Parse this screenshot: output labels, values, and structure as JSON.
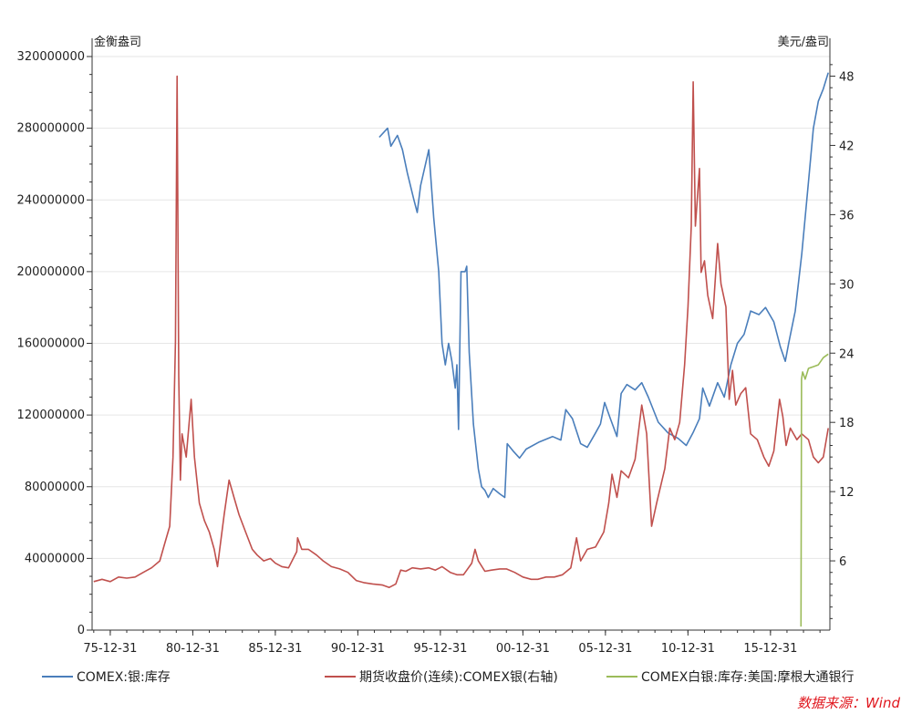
{
  "chart_data": {
    "type": "line",
    "left_axis": {
      "unit": "金衡盎司",
      "ylim": [
        0,
        320000000
      ],
      "ticks": [
        0,
        40000000,
        80000000,
        120000000,
        160000000,
        200000000,
        240000000,
        280000000,
        320000000
      ]
    },
    "right_axis": {
      "unit": "美元/盎司",
      "ylim": [
        0,
        49.7
      ],
      "ticks": [
        6,
        12,
        18,
        24,
        30,
        36,
        42,
        48
      ]
    },
    "x_ticks": [
      "75-12-31",
      "80-12-31",
      "85-12-31",
      "90-12-31",
      "95-12-31",
      "00-12-31",
      "05-12-31",
      "10-12-31",
      "15-12-31"
    ],
    "x_range": [
      1974.9,
      2019.6
    ],
    "grid": true,
    "legend_position": "bottom",
    "series": [
      {
        "name": "COMEX:银:库存",
        "axis": "left",
        "color": "#4a7ebb",
        "points": [
          [
            1992.3,
            275000000
          ],
          [
            1992.8,
            280000000
          ],
          [
            1993.0,
            270000000
          ],
          [
            1993.4,
            276000000
          ],
          [
            1993.7,
            268000000
          ],
          [
            1994.0,
            255000000
          ],
          [
            1994.4,
            240000000
          ],
          [
            1994.6,
            233000000
          ],
          [
            1994.8,
            248000000
          ],
          [
            1995.1,
            260000000
          ],
          [
            1995.3,
            268000000
          ],
          [
            1995.6,
            230000000
          ],
          [
            1995.9,
            200000000
          ],
          [
            1996.1,
            160000000
          ],
          [
            1996.3,
            148000000
          ],
          [
            1996.5,
            160000000
          ],
          [
            1996.7,
            150000000
          ],
          [
            1996.9,
            135000000
          ],
          [
            1997.0,
            148000000
          ],
          [
            1997.1,
            112000000
          ],
          [
            1997.25,
            200000000
          ],
          [
            1997.5,
            200000000
          ],
          [
            1997.6,
            203000000
          ],
          [
            1997.75,
            155000000
          ],
          [
            1998.0,
            115000000
          ],
          [
            1998.3,
            90000000
          ],
          [
            1998.5,
            80000000
          ],
          [
            1998.7,
            78000000
          ],
          [
            1998.9,
            74000000
          ],
          [
            1999.2,
            79000000
          ],
          [
            1999.6,
            76000000
          ],
          [
            1999.9,
            74000000
          ],
          [
            2000.05,
            104000000
          ],
          [
            2000.4,
            100000000
          ],
          [
            2000.8,
            96000000
          ],
          [
            2001.2,
            101000000
          ],
          [
            2002.0,
            105000000
          ],
          [
            2002.8,
            108000000
          ],
          [
            2003.3,
            106000000
          ],
          [
            2003.6,
            123000000
          ],
          [
            2004.0,
            118000000
          ],
          [
            2004.5,
            104000000
          ],
          [
            2004.9,
            102000000
          ],
          [
            2005.4,
            110000000
          ],
          [
            2005.7,
            115000000
          ],
          [
            2005.95,
            127000000
          ],
          [
            2006.3,
            118000000
          ],
          [
            2006.7,
            108000000
          ],
          [
            2006.95,
            132000000
          ],
          [
            2007.3,
            137000000
          ],
          [
            2007.8,
            134000000
          ],
          [
            2008.2,
            138000000
          ],
          [
            2008.6,
            130000000
          ],
          [
            2009.2,
            116000000
          ],
          [
            2009.8,
            110000000
          ],
          [
            2010.4,
            107000000
          ],
          [
            2010.9,
            103000000
          ],
          [
            2011.3,
            110000000
          ],
          [
            2011.7,
            118000000
          ],
          [
            2011.9,
            135000000
          ],
          [
            2012.3,
            125000000
          ],
          [
            2012.8,
            138000000
          ],
          [
            2013.2,
            130000000
          ],
          [
            2013.6,
            148000000
          ],
          [
            2014.0,
            160000000
          ],
          [
            2014.4,
            165000000
          ],
          [
            2014.8,
            178000000
          ],
          [
            2015.3,
            176000000
          ],
          [
            2015.7,
            180000000
          ],
          [
            2016.2,
            172000000
          ],
          [
            2016.6,
            158000000
          ],
          [
            2016.9,
            150000000
          ],
          [
            2017.1,
            160000000
          ],
          [
            2017.5,
            178000000
          ],
          [
            2017.9,
            210000000
          ],
          [
            2018.3,
            250000000
          ],
          [
            2018.6,
            280000000
          ],
          [
            2018.9,
            295000000
          ],
          [
            2019.2,
            302000000
          ],
          [
            2019.5,
            311000000
          ]
        ]
      },
      {
        "name": "期货收盘价(连续):COMEX银(右轴)",
        "axis": "right",
        "color": "#c0504d",
        "points": [
          [
            1975.0,
            4.2
          ],
          [
            1975.5,
            4.4
          ],
          [
            1976.0,
            4.2
          ],
          [
            1976.5,
            4.6
          ],
          [
            1977.0,
            4.5
          ],
          [
            1977.5,
            4.6
          ],
          [
            1978.0,
            5.0
          ],
          [
            1978.5,
            5.4
          ],
          [
            1979.0,
            6.0
          ],
          [
            1979.3,
            7.5
          ],
          [
            1979.6,
            9.0
          ],
          [
            1979.8,
            15.0
          ],
          [
            1979.95,
            25.0
          ],
          [
            1980.05,
            48.0
          ],
          [
            1980.15,
            22.0
          ],
          [
            1980.25,
            13.0
          ],
          [
            1980.35,
            17.0
          ],
          [
            1980.6,
            15.0
          ],
          [
            1980.9,
            20.0
          ],
          [
            1981.1,
            15.0
          ],
          [
            1981.4,
            11.0
          ],
          [
            1981.7,
            9.5
          ],
          [
            1982.0,
            8.5
          ],
          [
            1982.3,
            7.0
          ],
          [
            1982.5,
            5.5
          ],
          [
            1982.9,
            10.0
          ],
          [
            1983.2,
            13.0
          ],
          [
            1983.5,
            11.5
          ],
          [
            1983.8,
            10.0
          ],
          [
            1984.2,
            8.5
          ],
          [
            1984.6,
            7.0
          ],
          [
            1984.9,
            6.5
          ],
          [
            1985.3,
            6.0
          ],
          [
            1985.7,
            6.2
          ],
          [
            1986.0,
            5.8
          ],
          [
            1986.4,
            5.5
          ],
          [
            1986.8,
            5.4
          ],
          [
            1987.3,
            6.8
          ],
          [
            1987.35,
            8.0
          ],
          [
            1987.6,
            7.0
          ],
          [
            1988.0,
            7.0
          ],
          [
            1988.5,
            6.5
          ],
          [
            1988.9,
            6.0
          ],
          [
            1989.4,
            5.5
          ],
          [
            1989.9,
            5.3
          ],
          [
            1990.4,
            5.0
          ],
          [
            1990.9,
            4.3
          ],
          [
            1991.4,
            4.1
          ],
          [
            1991.9,
            4.0
          ],
          [
            1992.5,
            3.9
          ],
          [
            1992.9,
            3.7
          ],
          [
            1993.3,
            4.0
          ],
          [
            1993.6,
            5.2
          ],
          [
            1993.9,
            5.1
          ],
          [
            1994.3,
            5.4
          ],
          [
            1994.8,
            5.3
          ],
          [
            1995.3,
            5.4
          ],
          [
            1995.7,
            5.2
          ],
          [
            1996.1,
            5.5
          ],
          [
            1996.6,
            5.0
          ],
          [
            1997.0,
            4.8
          ],
          [
            1997.4,
            4.8
          ],
          [
            1997.9,
            5.8
          ],
          [
            1998.1,
            7.0
          ],
          [
            1998.3,
            6.0
          ],
          [
            1998.7,
            5.1
          ],
          [
            1999.1,
            5.2
          ],
          [
            1999.6,
            5.3
          ],
          [
            2000.0,
            5.3
          ],
          [
            2000.5,
            5.0
          ],
          [
            2001.0,
            4.6
          ],
          [
            2001.5,
            4.4
          ],
          [
            2001.9,
            4.4
          ],
          [
            2002.4,
            4.6
          ],
          [
            2002.9,
            4.6
          ],
          [
            2003.4,
            4.8
          ],
          [
            2003.9,
            5.4
          ],
          [
            2004.25,
            8.0
          ],
          [
            2004.5,
            6.0
          ],
          [
            2004.9,
            7.0
          ],
          [
            2005.4,
            7.2
          ],
          [
            2005.9,
            8.5
          ],
          [
            2006.2,
            11.0
          ],
          [
            2006.4,
            13.5
          ],
          [
            2006.7,
            11.5
          ],
          [
            2006.95,
            13.8
          ],
          [
            2007.4,
            13.2
          ],
          [
            2007.8,
            14.8
          ],
          [
            2008.2,
            19.5
          ],
          [
            2008.5,
            17.0
          ],
          [
            2008.8,
            9.0
          ],
          [
            2009.1,
            11.0
          ],
          [
            2009.6,
            14.0
          ],
          [
            2009.9,
            17.5
          ],
          [
            2010.2,
            16.5
          ],
          [
            2010.5,
            18.0
          ],
          [
            2010.8,
            23.0
          ],
          [
            2011.0,
            28.0
          ],
          [
            2011.2,
            35.0
          ],
          [
            2011.32,
            47.5
          ],
          [
            2011.45,
            35.0
          ],
          [
            2011.7,
            40.0
          ],
          [
            2011.8,
            31.0
          ],
          [
            2012.0,
            32.0
          ],
          [
            2012.2,
            29.0
          ],
          [
            2012.5,
            27.0
          ],
          [
            2012.8,
            33.5
          ],
          [
            2013.0,
            30.0
          ],
          [
            2013.3,
            28.0
          ],
          [
            2013.5,
            20.0
          ],
          [
            2013.7,
            22.5
          ],
          [
            2013.9,
            19.5
          ],
          [
            2014.2,
            20.5
          ],
          [
            2014.5,
            21.0
          ],
          [
            2014.8,
            17.0
          ],
          [
            2015.2,
            16.5
          ],
          [
            2015.6,
            15.0
          ],
          [
            2015.9,
            14.2
          ],
          [
            2016.2,
            15.5
          ],
          [
            2016.55,
            20.0
          ],
          [
            2016.75,
            18.5
          ],
          [
            2016.95,
            16.0
          ],
          [
            2017.2,
            17.5
          ],
          [
            2017.6,
            16.5
          ],
          [
            2017.9,
            17.0
          ],
          [
            2018.3,
            16.5
          ],
          [
            2018.6,
            15.0
          ],
          [
            2018.9,
            14.5
          ],
          [
            2019.2,
            15.0
          ],
          [
            2019.5,
            17.5
          ]
        ]
      },
      {
        "name": "COMEX白银:库存:美国:摩根大通银行",
        "axis": "left",
        "color": "#9bbb59",
        "points": [
          [
            2017.85,
            2000000
          ],
          [
            2017.88,
            140000000
          ],
          [
            2017.95,
            144000000
          ],
          [
            2018.1,
            140000000
          ],
          [
            2018.3,
            146000000
          ],
          [
            2018.6,
            147000000
          ],
          [
            2018.9,
            148000000
          ],
          [
            2019.2,
            152000000
          ],
          [
            2019.5,
            154000000
          ]
        ]
      }
    ]
  },
  "legend": {
    "s0": "COMEX:银:库存",
    "s1": "期货收盘价(连续):COMEX银(右轴)",
    "s2": "COMEX白银:库存:美国:摩根大通银行"
  },
  "source": "数据来源：Wind"
}
